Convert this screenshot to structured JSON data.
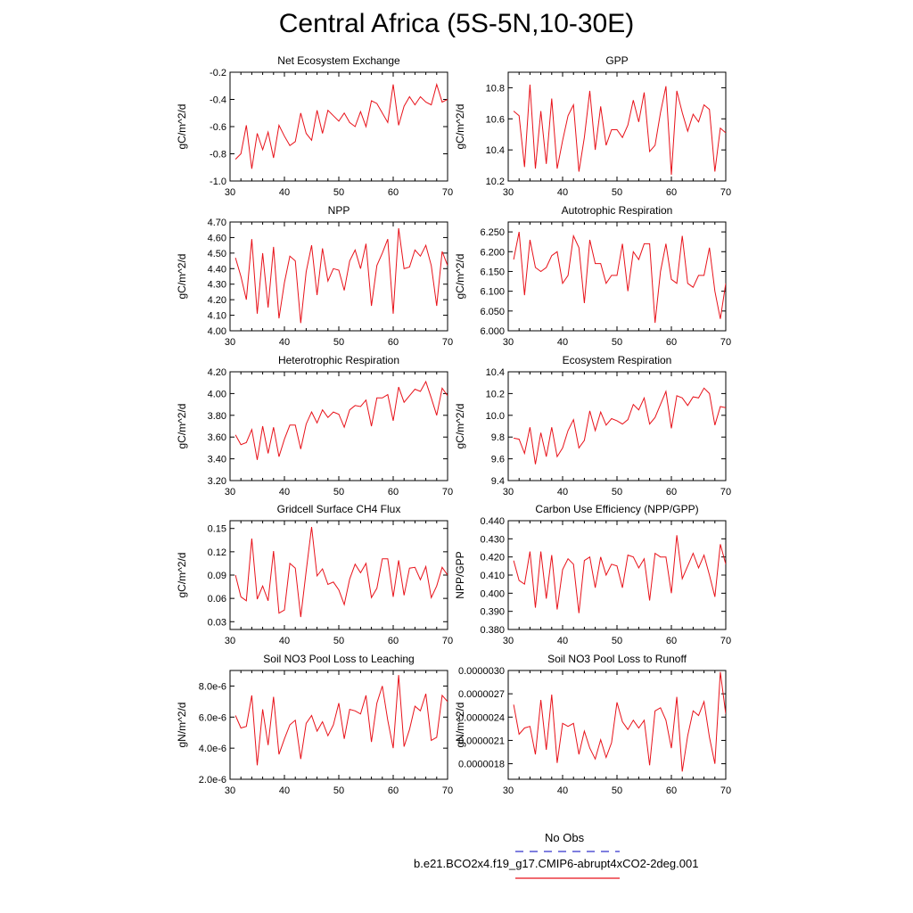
{
  "page": {
    "title": "Central Africa (5S-5N,10-30E)"
  },
  "colors": {
    "series": "#e8121a",
    "obs": "#3333cc",
    "axis": "#000000"
  },
  "legend": {
    "obs_label": "No Obs",
    "model_label": "b.e21.BCO2x4.f19_g17.CMIP6-abrupt4xCO2-2deg.001"
  },
  "chart_data": [
    {
      "type": "line",
      "title": "Net Ecosystem Exchange",
      "xlabel": "",
      "ylabel": "gC/m^2/d",
      "xlim": [
        30,
        70
      ],
      "ylim": [
        -1.0,
        -0.2
      ],
      "xticks": [
        30,
        40,
        50,
        60,
        70
      ],
      "yticks": [
        -1.0,
        -0.8,
        -0.6,
        -0.4,
        -0.2
      ],
      "ytick_labels": [
        "-1.0",
        "-0.8",
        "-0.6",
        "-0.4",
        "-0.2"
      ],
      "x": [
        31,
        32,
        33,
        34,
        35,
        36,
        37,
        38,
        39,
        40,
        41,
        42,
        43,
        44,
        45,
        46,
        47,
        48,
        49,
        50,
        51,
        52,
        53,
        54,
        55,
        56,
        57,
        58,
        59,
        60,
        61,
        62,
        63,
        64,
        65,
        66,
        67,
        68,
        69,
        70
      ],
      "series": [
        {
          "values": [
            -0.84,
            -0.8,
            -0.59,
            -0.91,
            -0.65,
            -0.77,
            -0.64,
            -0.83,
            -0.59,
            -0.67,
            -0.74,
            -0.71,
            -0.5,
            -0.65,
            -0.7,
            -0.48,
            -0.65,
            -0.48,
            -0.52,
            -0.56,
            -0.5,
            -0.57,
            -0.6,
            -0.49,
            -0.6,
            -0.41,
            -0.43,
            -0.5,
            -0.57,
            -0.29,
            -0.59,
            -0.45,
            -0.38,
            -0.44,
            -0.38,
            -0.42,
            -0.44,
            -0.29,
            -0.42,
            -0.4
          ]
        }
      ]
    },
    {
      "type": "line",
      "title": "GPP",
      "xlabel": "",
      "ylabel": "gC/m^2/d",
      "xlim": [
        30,
        70
      ],
      "ylim": [
        10.2,
        10.9
      ],
      "xticks": [
        30,
        40,
        50,
        60,
        70
      ],
      "yticks": [
        10.2,
        10.4,
        10.6,
        10.8
      ],
      "ytick_labels": [
        "10.2",
        "10.4",
        "10.6",
        "10.8"
      ],
      "x": [
        31,
        32,
        33,
        34,
        35,
        36,
        37,
        38,
        39,
        40,
        41,
        42,
        43,
        44,
        45,
        46,
        47,
        48,
        49,
        50,
        51,
        52,
        53,
        54,
        55,
        56,
        57,
        58,
        59,
        60,
        61,
        62,
        63,
        64,
        65,
        66,
        67,
        68,
        69,
        70
      ],
      "series": [
        {
          "values": [
            10.65,
            10.62,
            10.29,
            10.82,
            10.28,
            10.65,
            10.31,
            10.73,
            10.28,
            10.46,
            10.62,
            10.69,
            10.26,
            10.48,
            10.78,
            10.4,
            10.68,
            10.43,
            10.53,
            10.53,
            10.48,
            10.56,
            10.72,
            10.58,
            10.77,
            10.39,
            10.43,
            10.64,
            10.81,
            10.24,
            10.78,
            10.64,
            10.52,
            10.63,
            10.58,
            10.69,
            10.66,
            10.26,
            10.54,
            10.51
          ]
        }
      ]
    },
    {
      "type": "line",
      "title": "NPP",
      "xlabel": "",
      "ylabel": "gC/m^2/d",
      "xlim": [
        30,
        70
      ],
      "ylim": [
        4.0,
        4.7
      ],
      "xticks": [
        30,
        40,
        50,
        60,
        70
      ],
      "yticks": [
        4.0,
        4.1,
        4.2,
        4.3,
        4.4,
        4.5,
        4.6,
        4.7
      ],
      "ytick_labels": [
        "4.00",
        "4.10",
        "4.20",
        "4.30",
        "4.40",
        "4.50",
        "4.60",
        "4.70"
      ],
      "x": [
        31,
        32,
        33,
        34,
        35,
        36,
        37,
        38,
        39,
        40,
        41,
        42,
        43,
        44,
        45,
        46,
        47,
        48,
        49,
        50,
        51,
        52,
        53,
        54,
        55,
        56,
        57,
        58,
        59,
        60,
        61,
        62,
        63,
        64,
        65,
        66,
        67,
        68,
        69,
        70
      ],
      "series": [
        {
          "values": [
            4.47,
            4.35,
            4.2,
            4.59,
            4.11,
            4.5,
            4.15,
            4.54,
            4.08,
            4.31,
            4.48,
            4.45,
            4.05,
            4.38,
            4.55,
            4.23,
            4.53,
            4.32,
            4.4,
            4.39,
            4.26,
            4.45,
            4.52,
            4.4,
            4.56,
            4.16,
            4.42,
            4.5,
            4.59,
            4.11,
            4.66,
            4.4,
            4.41,
            4.52,
            4.48,
            4.55,
            4.42,
            4.16,
            4.51,
            4.42
          ]
        }
      ]
    },
    {
      "type": "line",
      "title": "Autotrophic Respiration",
      "xlabel": "",
      "ylabel": "gC/m^2/d",
      "xlim": [
        30,
        70
      ],
      "ylim": [
        6.0,
        6.275
      ],
      "xticks": [
        30,
        40,
        50,
        60,
        70
      ],
      "yticks": [
        6.0,
        6.05,
        6.1,
        6.15,
        6.2,
        6.25
      ],
      "ytick_labels": [
        "6.000",
        "6.050",
        "6.100",
        "6.150",
        "6.200",
        "6.250"
      ],
      "x": [
        31,
        32,
        33,
        34,
        35,
        36,
        37,
        38,
        39,
        40,
        41,
        42,
        43,
        44,
        45,
        46,
        47,
        48,
        49,
        50,
        51,
        52,
        53,
        54,
        55,
        56,
        57,
        58,
        59,
        60,
        61,
        62,
        63,
        64,
        65,
        66,
        67,
        68,
        69,
        70
      ],
      "series": [
        {
          "values": [
            6.18,
            6.25,
            6.09,
            6.23,
            6.16,
            6.15,
            6.16,
            6.19,
            6.2,
            6.12,
            6.14,
            6.24,
            6.21,
            6.07,
            6.23,
            6.17,
            6.17,
            6.12,
            6.14,
            6.14,
            6.22,
            6.1,
            6.2,
            6.18,
            6.22,
            6.22,
            6.02,
            6.15,
            6.22,
            6.13,
            6.12,
            6.24,
            6.12,
            6.11,
            6.14,
            6.14,
            6.21,
            6.1,
            6.03,
            6.12
          ]
        }
      ]
    },
    {
      "type": "line",
      "title": "Heterotrophic Respiration",
      "xlabel": "",
      "ylabel": "gC/m^2/d",
      "xlim": [
        30,
        70
      ],
      "ylim": [
        3.2,
        4.2
      ],
      "xticks": [
        30,
        40,
        50,
        60,
        70
      ],
      "yticks": [
        3.2,
        3.4,
        3.6,
        3.8,
        4.0,
        4.2
      ],
      "ytick_labels": [
        "3.20",
        "3.40",
        "3.60",
        "3.80",
        "4.00",
        "4.20"
      ],
      "x": [
        31,
        32,
        33,
        34,
        35,
        36,
        37,
        38,
        39,
        40,
        41,
        42,
        43,
        44,
        45,
        46,
        47,
        48,
        49,
        50,
        51,
        52,
        53,
        54,
        55,
        56,
        57,
        58,
        59,
        60,
        61,
        62,
        63,
        64,
        65,
        66,
        67,
        68,
        69,
        70
      ],
      "series": [
        {
          "values": [
            3.62,
            3.53,
            3.55,
            3.67,
            3.39,
            3.7,
            3.45,
            3.69,
            3.42,
            3.58,
            3.71,
            3.71,
            3.49,
            3.72,
            3.83,
            3.73,
            3.85,
            3.78,
            3.83,
            3.81,
            3.69,
            3.85,
            3.89,
            3.88,
            3.94,
            3.7,
            3.96,
            3.96,
            3.99,
            3.75,
            4.06,
            3.92,
            3.98,
            4.04,
            4.02,
            4.11,
            3.96,
            3.8,
            4.05,
            3.98
          ]
        }
      ]
    },
    {
      "type": "line",
      "title": "Ecosystem Respiration",
      "xlabel": "",
      "ylabel": "gC/m^2/d",
      "xlim": [
        30,
        70
      ],
      "ylim": [
        9.4,
        10.4
      ],
      "xticks": [
        30,
        40,
        50,
        60,
        70
      ],
      "yticks": [
        9.4,
        9.6,
        9.8,
        10.0,
        10.2,
        10.4
      ],
      "ytick_labels": [
        "9.4",
        "9.6",
        "9.8",
        "10.0",
        "10.2",
        "10.4"
      ],
      "x": [
        31,
        32,
        33,
        34,
        35,
        36,
        37,
        38,
        39,
        40,
        41,
        42,
        43,
        44,
        45,
        46,
        47,
        48,
        49,
        50,
        51,
        52,
        53,
        54,
        55,
        56,
        57,
        58,
        59,
        60,
        61,
        62,
        63,
        64,
        65,
        66,
        67,
        68,
        69,
        70
      ],
      "series": [
        {
          "values": [
            9.79,
            9.78,
            9.65,
            9.89,
            9.55,
            9.84,
            9.62,
            9.89,
            9.62,
            9.7,
            9.86,
            9.96,
            9.7,
            9.77,
            10.04,
            9.86,
            10.03,
            9.91,
            9.97,
            9.95,
            9.92,
            9.96,
            10.1,
            10.05,
            10.16,
            9.92,
            9.98,
            10.1,
            10.22,
            9.88,
            10.18,
            10.16,
            10.09,
            10.17,
            10.16,
            10.25,
            10.2,
            9.91,
            10.08,
            10.07
          ]
        }
      ]
    },
    {
      "type": "line",
      "title": "Gridcell Surface CH4 Flux",
      "xlabel": "",
      "ylabel": "gC/m^2/d",
      "xlim": [
        30,
        70
      ],
      "ylim": [
        0.02,
        0.16
      ],
      "xticks": [
        30,
        40,
        50,
        60,
        70
      ],
      "yticks": [
        0.03,
        0.06,
        0.09,
        0.12,
        0.15
      ],
      "ytick_labels": [
        "0.03",
        "0.06",
        "0.09",
        "0.12",
        "0.15"
      ],
      "x": [
        31,
        32,
        33,
        34,
        35,
        36,
        37,
        38,
        39,
        40,
        41,
        42,
        43,
        44,
        45,
        46,
        47,
        48,
        49,
        50,
        51,
        52,
        53,
        54,
        55,
        56,
        57,
        58,
        59,
        60,
        61,
        62,
        63,
        64,
        65,
        66,
        67,
        68,
        69,
        70
      ],
      "series": [
        {
          "values": [
            0.09,
            0.062,
            0.057,
            0.137,
            0.059,
            0.076,
            0.057,
            0.121,
            0.041,
            0.045,
            0.105,
            0.099,
            0.036,
            0.095,
            0.152,
            0.089,
            0.098,
            0.078,
            0.081,
            0.071,
            0.052,
            0.085,
            0.104,
            0.093,
            0.105,
            0.061,
            0.073,
            0.111,
            0.111,
            0.062,
            0.109,
            0.064,
            0.099,
            0.1,
            0.084,
            0.101,
            0.061,
            0.076,
            0.1,
            0.09
          ]
        }
      ]
    },
    {
      "type": "line",
      "title": "Carbon Use Efficiency (NPP/GPP)",
      "xlabel": "",
      "ylabel": "NPP/GPP",
      "xlim": [
        30,
        70
      ],
      "ylim": [
        0.38,
        0.44
      ],
      "xticks": [
        30,
        40,
        50,
        60,
        70
      ],
      "yticks": [
        0.38,
        0.39,
        0.4,
        0.41,
        0.42,
        0.43,
        0.44
      ],
      "ytick_labels": [
        "0.380",
        "0.390",
        "0.400",
        "0.410",
        "0.420",
        "0.430",
        "0.440"
      ],
      "x": [
        31,
        32,
        33,
        34,
        35,
        36,
        37,
        38,
        39,
        40,
        41,
        42,
        43,
        44,
        45,
        46,
        47,
        48,
        49,
        50,
        51,
        52,
        53,
        54,
        55,
        56,
        57,
        58,
        59,
        60,
        61,
        62,
        63,
        64,
        65,
        66,
        67,
        68,
        69,
        70
      ],
      "series": [
        {
          "values": [
            0.418,
            0.407,
            0.405,
            0.423,
            0.392,
            0.423,
            0.397,
            0.421,
            0.391,
            0.413,
            0.419,
            0.416,
            0.389,
            0.418,
            0.42,
            0.403,
            0.42,
            0.41,
            0.416,
            0.415,
            0.403,
            0.421,
            0.42,
            0.414,
            0.419,
            0.396,
            0.422,
            0.42,
            0.42,
            0.4,
            0.432,
            0.408,
            0.415,
            0.422,
            0.414,
            0.421,
            0.41,
            0.398,
            0.427,
            0.416
          ]
        }
      ]
    },
    {
      "type": "line",
      "title": "Soil NO3 Pool Loss to Leaching",
      "xlabel": "",
      "ylabel": "gN/m^2/d",
      "xlim": [
        30,
        70
      ],
      "ylim": [
        2e-06,
        9e-06
      ],
      "xticks": [
        30,
        40,
        50,
        60,
        70
      ],
      "yticks": [
        2e-06,
        4e-06,
        6e-06,
        8e-06
      ],
      "ytick_labels": [
        "2.0e-6",
        "4.0e-6",
        "6.0e-6",
        "8.0e-6"
      ],
      "x": [
        31,
        32,
        33,
        34,
        35,
        36,
        37,
        38,
        39,
        40,
        41,
        42,
        43,
        44,
        45,
        46,
        47,
        48,
        49,
        50,
        51,
        52,
        53,
        54,
        55,
        56,
        57,
        58,
        59,
        60,
        61,
        62,
        63,
        64,
        65,
        66,
        67,
        68,
        69,
        70
      ],
      "series": [
        {
          "values": [
            6.1e-06,
            5.3e-06,
            5.4e-06,
            7.4e-06,
            2.9e-06,
            6.5e-06,
            4.2e-06,
            7.3e-06,
            3.6e-06,
            4.6e-06,
            5.5e-06,
            5.8e-06,
            3.3e-06,
            5.6e-06,
            6.1e-06,
            5.1e-06,
            5.7e-06,
            4.8e-06,
            5.5e-06,
            6.9e-06,
            4.6e-06,
            6.5e-06,
            6.4e-06,
            6.2e-06,
            7.4e-06,
            4.4e-06,
            6.9e-06,
            8e-06,
            5.8e-06,
            4e-06,
            8.7e-06,
            4.1e-06,
            5.2e-06,
            6.7e-06,
            6.4e-06,
            7.5e-06,
            4.5e-06,
            4.7e-06,
            7.4e-06,
            7e-06
          ]
        }
      ]
    },
    {
      "type": "line",
      "title": "Soil NO3 Pool Loss to Runoff",
      "xlabel": "",
      "ylabel": "gN/m^2/d",
      "xlim": [
        30,
        70
      ],
      "ylim": [
        1.6e-06,
        3e-06
      ],
      "xticks": [
        30,
        40,
        50,
        60,
        70
      ],
      "yticks": [
        1.8e-06,
        2.1e-06,
        2.4e-06,
        2.7e-06,
        3e-06
      ],
      "ytick_labels": [
        "0.0000018",
        "0.0000021",
        "0.0000024",
        "0.0000027",
        "0.0000030"
      ],
      "x": [
        31,
        32,
        33,
        34,
        35,
        36,
        37,
        38,
        39,
        40,
        41,
        42,
        43,
        44,
        45,
        46,
        47,
        48,
        49,
        50,
        51,
        52,
        53,
        54,
        55,
        56,
        57,
        58,
        59,
        60,
        61,
        62,
        63,
        64,
        65,
        66,
        67,
        68,
        69,
        70
      ],
      "series": [
        {
          "values": [
            2.56e-06,
            2.18e-06,
            2.26e-06,
            2.28e-06,
            1.92e-06,
            2.62e-06,
            1.98e-06,
            2.69e-06,
            1.81e-06,
            2.32e-06,
            2.28e-06,
            2.32e-06,
            1.92e-06,
            2.22e-06,
            2e-06,
            1.86e-06,
            2.11e-06,
            1.88e-06,
            2.07e-06,
            2.59e-06,
            2.34e-06,
            2.24e-06,
            2.36e-06,
            2.26e-06,
            2.36e-06,
            1.78e-06,
            2.48e-06,
            2.52e-06,
            2.36e-06,
            2e-06,
            2.66e-06,
            1.7e-06,
            2.16e-06,
            2.48e-06,
            2.42e-06,
            2.6e-06,
            2.14e-06,
            1.8e-06,
            2.98e-06,
            2.44e-06
          ]
        }
      ]
    }
  ]
}
